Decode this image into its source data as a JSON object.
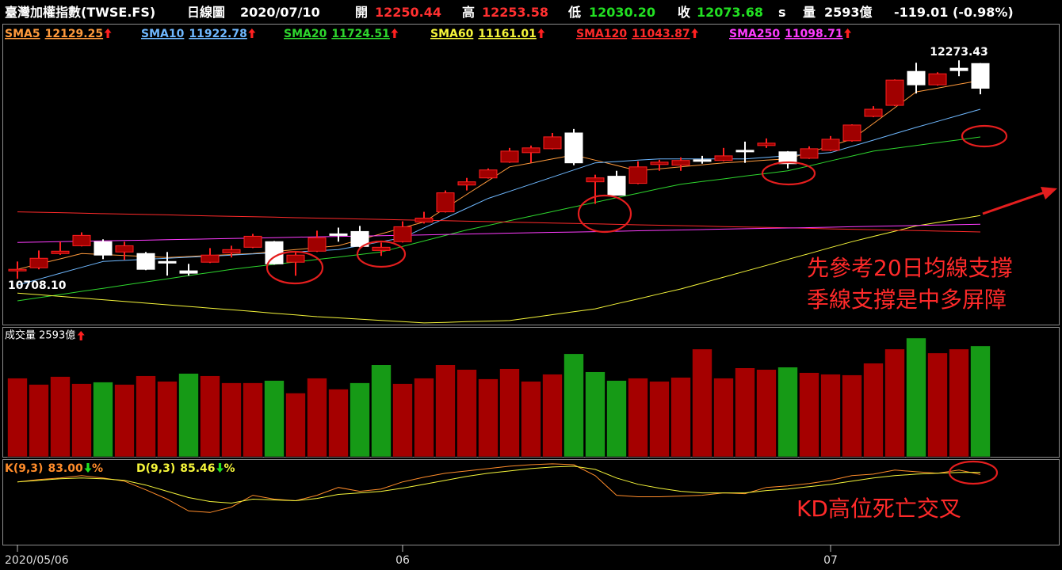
{
  "header": {
    "title": "臺灣加權指數(TWSE.FS)",
    "period": "日線圖",
    "date": "2020/07/10",
    "quotes": [
      {
        "label": "開",
        "value": "12250.44",
        "color": "#ff3030"
      },
      {
        "label": "高",
        "value": "12253.58",
        "color": "#ff3030"
      },
      {
        "label": "低",
        "value": "12030.20",
        "color": "#22e022"
      },
      {
        "label": "收",
        "value": "12073.68",
        "color": "#22e022"
      }
    ],
    "flag": "s",
    "volume": {
      "label": "量",
      "value": "2593億"
    },
    "change": "-119.01 (-0.98%)"
  },
  "chart_data": [
    {
      "type": "candlestick",
      "open": [
        10765,
        10787,
        10889,
        10945,
        10974,
        10900,
        10889,
        10832,
        10765,
        10827,
        10894,
        10934,
        10974,
        10827,
        10906,
        11030,
        11047,
        10911,
        10974,
        11115,
        11188,
        11380,
        11431,
        11544,
        11612,
        11640,
        11753,
        11403,
        11443,
        11392,
        11527,
        11522,
        11561,
        11556,
        11629,
        11663,
        11618,
        11572,
        11629,
        11697,
        11872,
        11951,
        12194,
        12098,
        12217,
        12250.44
      ],
      "high": [
        10832,
        10911,
        10974,
        11041,
        10991,
        10974,
        10900,
        10900,
        10815,
        10928,
        10945,
        11030,
        10979,
        10900,
        11053,
        11075,
        11087,
        10968,
        11120,
        11188,
        11341,
        11431,
        11499,
        11646,
        11663,
        11753,
        11782,
        11454,
        11482,
        11550,
        11561,
        11578,
        11589,
        11646,
        11691,
        11714,
        11623,
        11657,
        11731,
        11815,
        11945,
        12137,
        12256,
        12188,
        12273.43,
        12253.58
      ],
      "low": [
        10708.1,
        10776,
        10880,
        10940,
        10849,
        10844,
        10770,
        10731,
        10731,
        10821,
        10861,
        10928,
        10810,
        10730,
        10900,
        10974,
        10934,
        10872,
        10968,
        11104,
        11183,
        11341,
        11426,
        11539,
        11539,
        11635,
        11522,
        11245,
        11307,
        11386,
        11482,
        11482,
        11533,
        11550,
        11539,
        11646,
        11499,
        11567,
        11623,
        11691,
        11866,
        11945,
        12036,
        12092,
        12160,
        12030.2
      ],
      "close": [
        10776,
        10855,
        10906,
        11019,
        10878,
        10945,
        10776,
        10821,
        10748,
        10878,
        10917,
        11013,
        10815,
        10878,
        11002,
        11019,
        10940,
        10934,
        11081,
        11143,
        11324,
        11403,
        11488,
        11623,
        11646,
        11725,
        11539,
        11431,
        11307,
        11510,
        11544,
        11556,
        11550,
        11589,
        11618,
        11680,
        11533,
        11640,
        11708,
        11810,
        11923,
        12132,
        12098,
        12177,
        12200,
        12073.68
      ],
      "up_color": "#ff2020",
      "up_fill": "#a00000",
      "down_color": "#ffffff",
      "max_label": "12273.43",
      "min_label": "10708.10",
      "ylim": [
        10380,
        12530
      ],
      "series": [
        {
          "name": "SMA5",
          "color": "#ff9a3c",
          "values": [
            10776,
            10814,
            10851,
            10889,
            10882,
            10875,
            10868,
            10861,
            10868,
            10875,
            10882,
            10889,
            10903,
            10917,
            10931,
            10945,
            10988,
            11030,
            11073,
            11115,
            11214,
            11313,
            11411,
            11510,
            11538,
            11567,
            11595,
            11558,
            11520,
            11482,
            11496,
            11510,
            11525,
            11539,
            11548,
            11558,
            11567,
            11614,
            11661,
            11708,
            11821,
            11934,
            12047,
            12074,
            12102,
            12129.25
          ]
        },
        {
          "name": "SMA10",
          "color": "#6fb8ff",
          "values": [
            10663,
            10705,
            10748,
            10790,
            10832,
            10840,
            10848,
            10855,
            10863,
            10870,
            10878,
            10886,
            10894,
            10901,
            10909,
            10917,
            10945,
            10974,
            11002,
            11073,
            11143,
            11214,
            11284,
            11335,
            11386,
            11437,
            11488,
            11539,
            11548,
            11558,
            11567,
            11567,
            11567,
            11567,
            11567,
            11578,
            11590,
            11601,
            11612,
            11657,
            11702,
            11748,
            11793,
            11836,
            11880,
            11922.78
          ]
        },
        {
          "name": "SMA20",
          "color": "#2ed62e",
          "values": [
            10550,
            10573,
            10595,
            10618,
            10640,
            10663,
            10686,
            10708,
            10731,
            10753,
            10776,
            10794,
            10811,
            10829,
            10847,
            10864,
            10882,
            10900,
            10940,
            10979,
            11019,
            11058,
            11091,
            11124,
            11157,
            11190,
            11223,
            11256,
            11289,
            11321,
            11354,
            11386,
            11405,
            11424,
            11444,
            11463,
            11482,
            11517,
            11553,
            11588,
            11623,
            11643,
            11663,
            11684,
            11704,
            11724.51
          ]
        },
        {
          "name": "SMA60",
          "color": "#f5f53a",
          "values": [
            10606,
            10594,
            10582,
            10570,
            10558,
            10546,
            10534,
            10522,
            10510,
            10498,
            10486,
            10474,
            10461,
            10449,
            10437,
            10428,
            10419,
            10410,
            10401,
            10392,
            10396,
            10401,
            10405,
            10409,
            10430,
            10451,
            10472,
            10493,
            10529,
            10564,
            10600,
            10635,
            10677,
            10720,
            10762,
            10804,
            10847,
            10889,
            10932,
            10974,
            11012,
            11049,
            11087,
            11112,
            11136,
            11161.01
          ]
        },
        {
          "name": "SMA120",
          "color": "#ff2a2a",
          "values": [
            11188,
            11185,
            11182,
            11178,
            11175,
            11172,
            11169,
            11166,
            11162,
            11159,
            11156,
            11153,
            11150,
            11146,
            11143,
            11140,
            11137,
            11134,
            11130,
            11127,
            11124,
            11121,
            11118,
            11114,
            11111,
            11108,
            11105,
            11102,
            11098,
            11095,
            11092,
            11089,
            11086,
            11082,
            11079,
            11076,
            11073,
            11070,
            11066,
            11063,
            11060,
            11057,
            11054,
            11050,
            11047,
            11043.87
          ]
        },
        {
          "name": "SMA250",
          "color": "#ff3cff",
          "values": [
            10968,
            10971,
            10974,
            10977,
            10980,
            10983,
            10985,
            10988,
            10991,
            10994,
            10997,
            11000,
            11003,
            11006,
            11009,
            11012,
            11014,
            11017,
            11020,
            11023,
            11026,
            11029,
            11032,
            11035,
            11038,
            11041,
            11043,
            11046,
            11049,
            11052,
            11055,
            11058,
            11061,
            11064,
            11067,
            11070,
            11072,
            11075,
            11078,
            11081,
            11084,
            11087,
            11090,
            11093,
            11096,
            11098.71
          ]
        }
      ],
      "annotations": [
        "先參考20日均線支撐",
        "季線支撐是中多屏障"
      ]
    },
    {
      "type": "bar",
      "title": "成交量 2593億",
      "values": [
        1839,
        1692,
        1876,
        1710,
        1747,
        1692,
        1894,
        1765,
        1949,
        1894,
        1729,
        1729,
        1784,
        1490,
        1839,
        1582,
        1729,
        2152,
        1710,
        1839,
        2152,
        2041,
        1821,
        2060,
        1765,
        1931,
        2409,
        1986,
        1784,
        1839,
        1765,
        1857,
        2519,
        1839,
        2078,
        2041,
        2096,
        1968,
        1931,
        1913,
        2188,
        2519,
        2777,
        2427,
        2519,
        2593
      ],
      "colors": [
        "#a50000",
        "#a50000",
        "#a50000",
        "#a50000",
        "#169a16",
        "#a50000",
        "#a50000",
        "#a50000",
        "#169a16",
        "#a50000",
        "#a50000",
        "#a50000",
        "#169a16",
        "#a50000",
        "#a50000",
        "#a50000",
        "#169a16",
        "#169a16",
        "#a50000",
        "#a50000",
        "#a50000",
        "#a50000",
        "#a50000",
        "#a50000",
        "#a50000",
        "#a50000",
        "#169a16",
        "#169a16",
        "#169a16",
        "#a50000",
        "#a50000",
        "#a50000",
        "#a50000",
        "#a50000",
        "#a50000",
        "#a50000",
        "#169a16",
        "#a50000",
        "#a50000",
        "#a50000",
        "#a50000",
        "#a50000",
        "#169a16",
        "#a50000",
        "#a50000",
        "#169a16"
      ],
      "ylim": [
        0,
        3016
      ]
    },
    {
      "type": "line",
      "unit": "%",
      "ylim": [
        0,
        100
      ],
      "categories": [
        "2020/05/06",
        null,
        null,
        null,
        null,
        null,
        null,
        null,
        null,
        null,
        null,
        null,
        null,
        null,
        null,
        null,
        null,
        null,
        "06",
        null,
        null,
        null,
        null,
        null,
        null,
        null,
        null,
        null,
        null,
        null,
        null,
        null,
        null,
        null,
        null,
        null,
        null,
        null,
        "07",
        null,
        null,
        null,
        null,
        null,
        null,
        null
      ],
      "series": [
        {
          "name": "K(9,3)",
          "color": "#ff8c2a",
          "values": [
            74.1,
            76.9,
            78.7,
            81.5,
            78.7,
            75.0,
            64.8,
            53.7,
            39.8,
            38.0,
            44.4,
            58.3,
            53.7,
            51.9,
            58.3,
            67.6,
            63.0,
            65.7,
            74.1,
            79.6,
            84.3,
            87.0,
            89.8,
            92.6,
            94.4,
            95.4,
            94.4,
            81.5,
            58.3,
            56.5,
            56.5,
            57.4,
            58.3,
            61.1,
            60.2,
            67.6,
            69.4,
            72.2,
            75.9,
            81.5,
            83.3,
            88.0,
            86.1,
            84.3,
            88.0,
            83
          ],
          "value_labels": [
            null,
            null,
            null,
            null,
            null,
            null,
            null,
            null,
            null,
            null,
            null,
            null,
            null,
            null,
            null,
            null,
            null,
            null,
            null,
            null,
            null,
            null,
            null,
            null,
            null,
            null,
            null,
            null,
            null,
            null,
            null,
            null,
            null,
            null,
            null,
            null,
            null,
            null,
            null,
            null,
            null,
            null,
            null,
            null,
            null,
            "83.00"
          ]
        },
        {
          "name": "D(9,3)",
          "color": "#f5f53a",
          "values": [
            74.1,
            75.9,
            77.8,
            78.7,
            77.8,
            75.9,
            70.4,
            63.0,
            55.6,
            50.9,
            49.1,
            53.7,
            52.8,
            51.9,
            54.6,
            59.3,
            61.1,
            63.0,
            66.7,
            71.3,
            75.9,
            80.6,
            84.3,
            87.0,
            89.8,
            91.7,
            92.6,
            88.9,
            78.7,
            71.3,
            66.7,
            63.0,
            61.1,
            61.1,
            61.1,
            63.9,
            65.7,
            68.5,
            71.3,
            75.0,
            78.7,
            81.5,
            83.3,
            84.3,
            85.2,
            85.46
          ]
        }
      ],
      "annotations": [
        "KD高位死亡交叉"
      ]
    }
  ]
}
